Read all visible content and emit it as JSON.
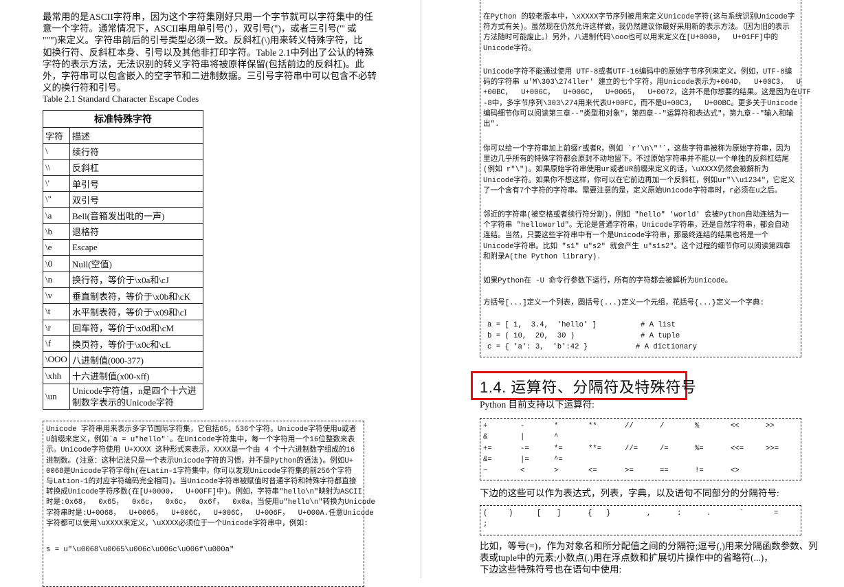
{
  "left_page": {
    "intro_lines": [
      "最常用的是ASCII字符串，因为这个字符集刚好只用一个字节就可以字符集中的任",
      "意一个字符。通常情况下，ASCII串用单引号('），双引号(\")，或者三引号(''' 或",
      " \"\"\")来定义。字符串前后的引号类型必须一致。反斜杠(\\)用来转义特殊字符，比",
      "如换行符、反斜杠本身、引号以及其他非打印字符。Table 2.1中列出了公认的特殊",
      "字符的表示方法，无法识别的转义字符串将被原样保留(包括前边的反斜杠)。此",
      "外，字符串可以包含嵌入的空字节和二进制数据。三引号字符串中可以包含不必转",
      "义的换行符和引号。"
    ],
    "table_caption": "Table 2.1 Standard Character Escape Codes",
    "table": {
      "title": "标准特殊字符",
      "headers": [
        "字符",
        "描述"
      ],
      "rows": [
        [
          "\\",
          "续行符"
        ],
        [
          "\\\\",
          "反斜杠"
        ],
        [
          "\\'",
          "单引号"
        ],
        [
          "\\\"",
          "双引号"
        ],
        [
          "\\a",
          "Bell(音箱发出吡的一声)"
        ],
        [
          "\\b",
          "退格符"
        ],
        [
          "\\e",
          "Escape"
        ],
        [
          "\\0",
          "Null(空值)"
        ],
        [
          "\\n",
          "换行符，等价于\\x0a和\\cJ"
        ],
        [
          "\\v",
          "垂直制表符，等价于\\x0b和\\cK"
        ],
        [
          "\\t",
          "水平制表符，等价于\\x09和\\cI"
        ],
        [
          "\\r",
          "回车符，等价于\\x0d和\\cM"
        ],
        [
          "\\f",
          "换页符，等价于\\x0c和\\cL"
        ],
        [
          "\\OOO",
          "八进制值(000-377)"
        ],
        [
          "\\xhh",
          "十六进制值(x00-xff)"
        ],
        [
          "\\un",
          "Unicode字符值，n是四个十六进制数字表示的Unicode字符"
        ]
      ]
    },
    "unicode_box_lines": [
      "Unicode 字符串用来表示多字节国际字符集，它包括65，536个字符。Unicode字符使用u或者",
      "U前缀来定义，例如`a = u\"hello\"`。在Unicode字符集中，每一个字符用一个16位整数来表",
      "示。Unicode字符使用 U+XXXX 这种形式来表示，XXXX是一个由 4 个十六进制数字组成的16",
      "进制数。(注意：这种记法只是一个表示Unicode字符的习惯，并不是Python的语法)。例如U+",
      "0068是Unicode字符字母h(在Latin-1字符集中，你可以发现Unicode字符集的前256个字符",
      "与Lation-1的对应字符编码完全相同)。当Unicode字符串被赋值时普通字符和特殊字符都直接",
      "转换成Unicode字符序数(在[U+0000，  U+00FF]中)。例如，字符串\"hello\\n\"映射为ASCII",
      "时是:0x68，  0x65，  0x6c，  0x6c，  0x6f，  0x0a，当使用u\"hello\\n\"转换为Unicode",
      "字符串时是:U+0068，  U+0065，  U+006C，  U+006C，  U+006F，  U+000A.任意Unicode",
      "字符都可以使用\\uXXXX来定义，\\uXXXX必须位于一个Unicode字符串中，例如:"
    ],
    "unicode_example": "s = u\"\\u0068\\u0065\\u006c\\u006c\\u006f\\u000a\""
  },
  "right_page": {
    "box_paragraphs": [
      [
        "在Python 的较老版本中，\\xXXXX字节序列被用来定义Unicode字符(这与系统识别Unicode字",
        "符方式有关)。虽然现在仍然允许这样做，我仍然建议你最好采用新的表示方法。（因为旧的表示",
        "方法随时可能废止。）另外，八进制代码\\ooo也可以用来定义在[U+0000，  U+01FF]中的",
        "Unicode字符。"
      ],
      [
        "Unicode字符不能通过使用 UTF-8或者UTF-16编码中的原始字节序列来定义。例如，UTF-8编",
        "码的字符串 u'M\\303\\274ller' 建立的七个字符，用Unicode表示为+004D，  U+00C3，  U",
        "+00BC，  U+006C，  U+006C，  U+0065，  U+0072，这并不是你想要的结果。这是因为在UTF",
        "-8中，多字节序列\\303\\274用来代表U+00FC，而不是U+00C3，  U+00BC。更多关于Unicode",
        "编码细节你可以阅读第三章--\"类型和对象\"，第四章--\"运算符和表达式\"，第九章--\"输入和输",
        "出\"."
      ],
      [
        "你可以给一个字符串加上前缀r或者R，例如 `r'\\n\\\"'`，这些字符串被称为原始字符串，因为",
        "里边几乎所有的特殊字符都会原封不动地留下。不过原始字符串并不能以一个单独的反斜杠结尾",
        "(例如 r\"\\\")。如果原始字符串使用ur或者UR前缀来定义的话，\\uXXXX仍然会被解析为",
        "Unicode字符。如果你不想这样，你可以在它前边再加一个反斜杠，例如ur\"\\\\u1234\"，它定义",
        "了一个含有7个字符的字符串。需要注意的是，定义原始Unicode字符串时，r必须在u之后。"
      ],
      [
        "邻近的字符串(被空格或者续行符分割)，例如 \"hello\" 'world' 会被Python自动连结为一",
        "个字符串 \"helloworld\"。无论是普通字符串，Unicode字符串，还是自然字符串，都会自动",
        "连结。当然，只要这些字符串中有一个是Unicode字符串，那最终连结的结果也将是一个",
        "Unicode字符串。比如 \"s1\" u\"s2\" 就会产生 u\"s1s2\"。这个过程的细节你可以阅读第四章",
        "和附录A(the Python library)."
      ],
      [
        "如果Python在 -U 命令行参数下运行，所有的字符都会被解析为Unicode。"
      ],
      [
        "方括号[...]定义一个列表，圆括号(...)定义一个元组，花括号{...}定义一个字典:"
      ]
    ],
    "code_lines": [
      {
        "code": "a = [ 1,  3.4,  'hello' ]",
        "comment": "# A list"
      },
      {
        "code": "b = ( 10,  20,  30 )",
        "comment": "# A tuple"
      },
      {
        "code": "c = { 'a': 3,  'b':42 }",
        "comment": "# A dictionary"
      }
    ],
    "section_heading": "1.4.  运算符、分隔符及特殊符号",
    "operators_intro": "Python 目前支持以下运算符:",
    "operators": [
      [
        "+",
        "-",
        "*",
        "**",
        "//",
        "/",
        "%",
        "<<",
        ">>"
      ],
      [
        "&",
        "|",
        "^"
      ],
      [
        "+=",
        "-=",
        "*=",
        "**=",
        "//=",
        "/=",
        "%=",
        "<<=",
        ">>="
      ],
      [
        "&=",
        "|=",
        "^="
      ],
      [
        "~",
        "<",
        ">",
        "<=",
        ">=",
        "==",
        "!=",
        "<>"
      ]
    ],
    "delimiters_intro": "下边的这些可以作为表达式，列表，字典，以及语句不同部分的分隔符号:",
    "delimiters": [
      [
        "(",
        ")",
        "[",
        "]",
        "{",
        "}",
        ",",
        ":",
        ".",
        "`",
        "="
      ],
      [
        ";"
      ]
    ],
    "closing_lines": [
      "比如，等号(=)，作为对象名和所分配值之间的分隔符;逗号(,)用来分隔函数参数、列",
      "表或tuple中的元素;小数点(.)用在浮点数和扩展切片操作中的省略符(...)，",
      "下边这些特殊符号也在语句中使用:"
    ]
  },
  "colors": {
    "heading_box": "#e01010",
    "text": "#111111",
    "page_divider": "#c8c8c8"
  }
}
